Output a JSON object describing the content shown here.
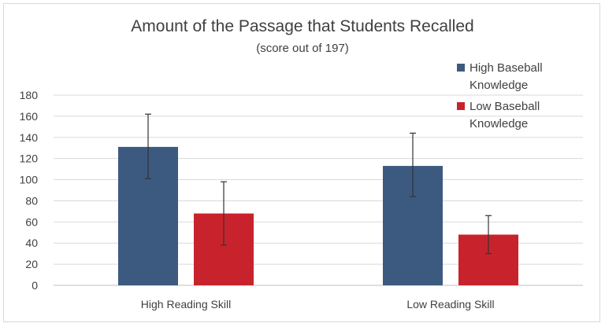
{
  "chart_data": {
    "type": "bar",
    "title": "Amount of the Passage that Students Recalled",
    "subtitle": "(score out of 197)",
    "categories": [
      "High Reading Skill",
      "Low Reading Skill"
    ],
    "series": [
      {
        "name": "High Baseball Knowledge",
        "color": "#3c5a80",
        "values": [
          131,
          113
        ],
        "error_low": [
          101,
          84
        ],
        "error_high": [
          162,
          144
        ]
      },
      {
        "name": "Low Baseball Knowledge",
        "color": "#c8232c",
        "values": [
          68,
          48
        ],
        "error_low": [
          38,
          30
        ],
        "error_high": [
          98,
          66
        ]
      }
    ],
    "ylim": [
      0,
      180
    ],
    "yticks": [
      "0",
      "20",
      "40",
      "60",
      "80",
      "100",
      "120",
      "140",
      "160",
      "180"
    ],
    "grid": true,
    "legend_position": "top-right",
    "xlabel": "",
    "ylabel": ""
  }
}
